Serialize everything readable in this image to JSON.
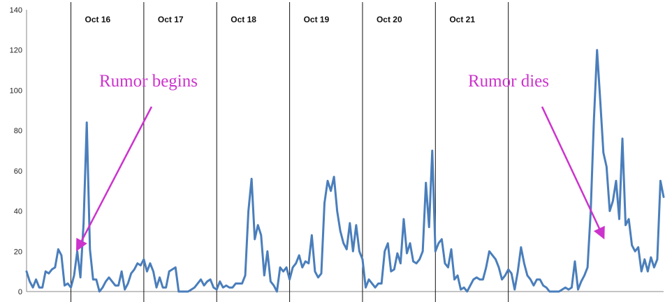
{
  "chart_data": {
    "type": "line",
    "title": "",
    "xlabel": "",
    "ylabel": "",
    "ylim": [
      0,
      140
    ],
    "yticks": [
      0,
      20,
      40,
      60,
      80,
      100,
      120,
      140
    ],
    "grid": false,
    "legend": "none",
    "line_color": "#4a7ebb",
    "day_labels": [
      "Oct 16",
      "Oct 17",
      "Oct 18",
      "Oct 19",
      "Oct 20",
      "Oct 21"
    ],
    "series": [
      {
        "values": [
          10,
          5,
          2,
          6,
          2,
          2,
          10,
          9,
          11,
          12,
          21,
          18,
          3,
          4,
          2,
          8,
          20,
          7,
          34,
          84,
          21,
          6,
          6,
          0,
          2,
          5,
          7,
          5,
          3,
          3,
          10,
          1,
          4,
          9,
          11,
          14,
          13,
          16,
          10,
          14,
          10,
          2,
          7,
          2,
          2,
          10,
          11,
          12,
          0,
          0,
          0,
          0,
          1,
          2,
          4,
          6,
          3,
          5,
          6,
          2,
          1,
          5,
          2,
          3,
          2,
          2,
          4,
          4,
          4,
          8,
          40,
          56,
          26,
          33,
          28,
          8,
          20,
          5,
          3,
          0,
          12,
          10,
          12,
          6,
          12,
          14,
          18,
          12,
          15,
          14,
          28,
          10,
          7,
          9,
          44,
          55,
          50,
          57,
          40,
          30,
          24,
          21,
          34,
          20,
          33,
          20,
          16,
          2,
          6,
          4,
          2,
          4,
          4,
          20,
          24,
          10,
          11,
          19,
          14,
          36,
          19,
          24,
          15,
          14,
          16,
          20,
          54,
          32,
          70,
          20,
          24,
          26,
          14,
          12,
          21,
          6,
          8,
          1,
          2,
          0,
          3,
          6,
          7,
          6,
          6,
          12,
          20,
          18,
          16,
          12,
          6,
          8,
          11,
          9,
          1,
          10,
          22,
          14,
          8,
          6,
          3,
          6,
          6,
          3,
          2,
          0,
          0,
          0,
          0,
          1,
          2,
          1,
          2,
          15,
          1,
          5,
          8,
          12,
          40,
          85,
          120,
          95,
          69,
          62,
          40,
          45,
          55,
          36,
          76,
          33,
          36,
          23,
          20,
          22,
          10,
          16,
          10,
          17,
          12,
          16,
          55,
          47
        ]
      }
    ],
    "day_boundaries": [
      14,
      37,
      60,
      83,
      106,
      129,
      152
    ],
    "annotations": [
      {
        "text": "Rumor begins",
        "color": "#cc33cc",
        "arrow_to_index": 16,
        "arrow_to_value": 21
      },
      {
        "text": "Rumor dies",
        "color": "#cc33cc",
        "arrow_to_index": 182,
        "arrow_to_value": 27
      }
    ]
  }
}
